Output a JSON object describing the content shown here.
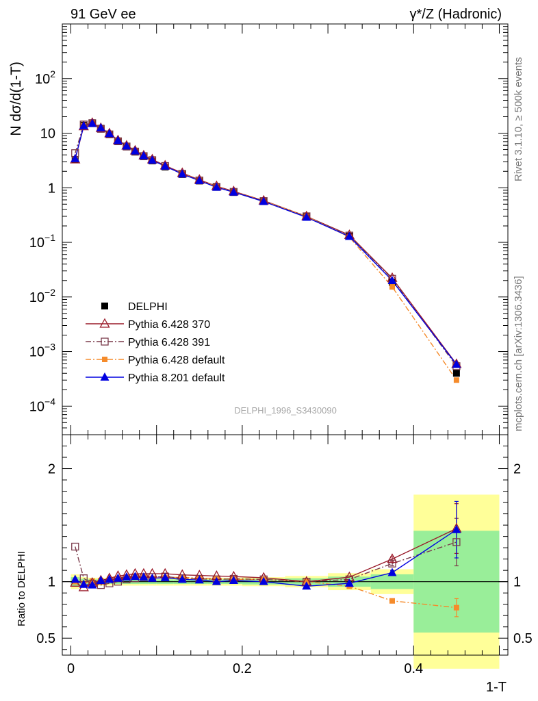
{
  "header": {
    "left": "91 GeV ee",
    "right": "γ*/Z (Hadronic)"
  },
  "side_text": {
    "rivet": "Rivet 3.1.10, ≥ 500k events",
    "mcplots": "mcplots.cern.ch [arXiv:1306.3436]"
  },
  "watermark": "DELPHI_1996_S3430090",
  "colors": {
    "delphi": "#000000",
    "p6_370": "#9a1b2a",
    "p6_391": "#7a3a4a",
    "p6_default": "#f58b2b",
    "p8_default": "#0000e0",
    "band_inner": "#99ee99",
    "band_outer": "#ffff99"
  },
  "chart_data": [
    {
      "type": "line",
      "title": "",
      "xlabel": "1-T",
      "ylabel": "N dσ/d(1-T)",
      "yscale": "log",
      "xlim": [
        -0.01,
        0.51
      ],
      "ylim": [
        3e-05,
        1000
      ],
      "yticks": [
        {
          "value": 0.0001,
          "base": "10",
          "exp": "−4"
        },
        {
          "value": 0.001,
          "base": "10",
          "exp": "−3"
        },
        {
          "value": 0.01,
          "base": "10",
          "exp": "−2"
        },
        {
          "value": 0.1,
          "base": "10",
          "exp": "−1"
        },
        {
          "value": 1,
          "base": "1",
          "exp": ""
        },
        {
          "value": 10,
          "base": "10",
          "exp": ""
        },
        {
          "value": 100,
          "base": "10",
          "exp": "2"
        }
      ],
      "x": [
        0.005,
        0.015,
        0.025,
        0.035,
        0.045,
        0.055,
        0.065,
        0.075,
        0.085,
        0.095,
        0.11,
        0.13,
        0.15,
        0.17,
        0.19,
        0.225,
        0.275,
        0.325,
        0.375,
        0.45
      ],
      "legend": [
        {
          "key": "delphi",
          "label": "DELPHI"
        },
        {
          "key": "p6_370",
          "label": "Pythia 6.428 370"
        },
        {
          "key": "p6_391",
          "label": "Pythia 6.428 391"
        },
        {
          "key": "p6_default",
          "label": "Pythia 6.428 default"
        },
        {
          "key": "p8_default",
          "label": "Pythia 8.201 default"
        }
      ],
      "series": [
        {
          "key": "delphi",
          "name": "DELPHI",
          "marker": "square-filled",
          "values": [
            3.3,
            14.0,
            15.5,
            12.3,
            9.6,
            7.1,
            5.6,
            4.5,
            3.7,
            3.1,
            2.4,
            1.75,
            1.33,
            1.02,
            0.82,
            0.56,
            0.3,
            0.13,
            0.0185,
            0.0004
          ]
        },
        {
          "key": "p6_370",
          "name": "Pythia 6.428 370",
          "marker": "triangle-open",
          "dash": "",
          "values": [
            3.3,
            13.3,
            15.4,
            12.4,
            9.9,
            7.4,
            5.9,
            4.8,
            3.9,
            3.3,
            2.55,
            1.86,
            1.4,
            1.07,
            0.86,
            0.58,
            0.3,
            0.136,
            0.0222,
            0.00059
          ]
        },
        {
          "key": "p6_391",
          "name": "Pythia 6.428 391",
          "marker": "square-open",
          "dash": "8,3,2,3",
          "values": [
            4.3,
            14.4,
            15.2,
            12.0,
            9.5,
            7.1,
            5.7,
            4.6,
            3.8,
            3.2,
            2.5,
            1.8,
            1.36,
            1.04,
            0.84,
            0.57,
            0.3,
            0.133,
            0.0215,
            0.00054
          ]
        },
        {
          "key": "p6_default",
          "name": "Pythia 6.428 default",
          "marker": "square-filled-small",
          "dash": "8,3,2,3",
          "values": [
            3.3,
            13.8,
            15.6,
            12.5,
            9.8,
            7.3,
            5.8,
            4.7,
            3.85,
            3.2,
            2.48,
            1.82,
            1.37,
            1.05,
            0.84,
            0.57,
            0.3,
            0.125,
            0.0153,
            0.0003
          ]
        },
        {
          "key": "p8_default",
          "name": "Pythia 8.201 default",
          "marker": "triangle-filled",
          "dash": "",
          "values": [
            3.4,
            13.6,
            15.0,
            12.5,
            9.8,
            7.3,
            5.8,
            4.7,
            3.85,
            3.2,
            2.48,
            1.78,
            1.35,
            1.02,
            0.83,
            0.56,
            0.287,
            0.128,
            0.0199,
            0.00058
          ]
        }
      ]
    },
    {
      "type": "line",
      "title": "",
      "xlabel": "1-T",
      "ylabel": "Ratio to DELPHI",
      "xlim": [
        -0.01,
        0.51
      ],
      "ylim": [
        0.35,
        2.3
      ],
      "xticks": [
        {
          "value": 0.0,
          "label": "0"
        },
        {
          "value": 0.2,
          "label": "0.2"
        },
        {
          "value": 0.4,
          "label": "0.4"
        }
      ],
      "yticks": [
        {
          "value": 0.5,
          "label": "0.5"
        },
        {
          "value": 1.0,
          "label": "1"
        },
        {
          "value": 2.0,
          "label": "2"
        }
      ],
      "bands": [
        {
          "x0": 0.0,
          "x1": 0.01,
          "inner": 0.04,
          "outer": 0.065
        },
        {
          "x0": 0.01,
          "x1": 0.02,
          "inner": 0.025,
          "outer": 0.04
        },
        {
          "x0": 0.02,
          "x1": 0.03,
          "inner": 0.02,
          "outer": 0.035
        },
        {
          "x0": 0.03,
          "x1": 0.04,
          "inner": 0.02,
          "outer": 0.035
        },
        {
          "x0": 0.04,
          "x1": 0.05,
          "inner": 0.02,
          "outer": 0.035
        },
        {
          "x0": 0.05,
          "x1": 0.06,
          "inner": 0.02,
          "outer": 0.035
        },
        {
          "x0": 0.06,
          "x1": 0.07,
          "inner": 0.02,
          "outer": 0.035
        },
        {
          "x0": 0.07,
          "x1": 0.08,
          "inner": 0.02,
          "outer": 0.035
        },
        {
          "x0": 0.08,
          "x1": 0.09,
          "inner": 0.02,
          "outer": 0.035
        },
        {
          "x0": 0.09,
          "x1": 0.1,
          "inner": 0.02,
          "outer": 0.035
        },
        {
          "x0": 0.1,
          "x1": 0.12,
          "inner": 0.02,
          "outer": 0.035
        },
        {
          "x0": 0.12,
          "x1": 0.14,
          "inner": 0.02,
          "outer": 0.035
        },
        {
          "x0": 0.14,
          "x1": 0.16,
          "inner": 0.02,
          "outer": 0.035
        },
        {
          "x0": 0.16,
          "x1": 0.18,
          "inner": 0.02,
          "outer": 0.035
        },
        {
          "x0": 0.18,
          "x1": 0.2,
          "inner": 0.02,
          "outer": 0.035
        },
        {
          "x0": 0.2,
          "x1": 0.25,
          "inner": 0.025,
          "outer": 0.04
        },
        {
          "x0": 0.25,
          "x1": 0.3,
          "inner": 0.03,
          "outer": 0.05
        },
        {
          "x0": 0.3,
          "x1": 0.35,
          "inner": 0.045,
          "outer": 0.075
        },
        {
          "x0": 0.35,
          "x1": 0.4,
          "inner": 0.065,
          "outer": 0.11
        },
        {
          "x0": 0.4,
          "x1": 0.5,
          "inner": 0.45,
          "outer": 0.77
        }
      ],
      "series": [
        {
          "key": "p6_370",
          "name": "Pythia 6.428 370",
          "values": [
            0.99,
            0.95,
            0.99,
            1.01,
            1.03,
            1.05,
            1.06,
            1.07,
            1.07,
            1.07,
            1.07,
            1.06,
            1.055,
            1.05,
            1.045,
            1.035,
            1.0,
            1.04,
            1.2,
            1.47
          ],
          "errors": [
            0.004,
            0.003,
            0.003,
            0.003,
            0.003,
            0.003,
            0.003,
            0.003,
            0.003,
            0.003,
            0.003,
            0.003,
            0.003,
            0.003,
            0.003,
            0.004,
            0.005,
            0.008,
            0.02,
            0.22
          ]
        },
        {
          "key": "p6_391",
          "name": "Pythia 6.428 391",
          "values": [
            1.31,
            1.03,
            0.98,
            0.97,
            0.985,
            1.0,
            1.02,
            1.03,
            1.04,
            1.04,
            1.045,
            1.03,
            1.025,
            1.02,
            1.025,
            1.02,
            1.0,
            1.02,
            1.16,
            1.35
          ],
          "errors": [
            0.006,
            0.003,
            0.003,
            0.003,
            0.003,
            0.003,
            0.003,
            0.003,
            0.003,
            0.003,
            0.003,
            0.003,
            0.003,
            0.003,
            0.003,
            0.004,
            0.005,
            0.008,
            0.02,
            0.21
          ]
        },
        {
          "key": "p6_default",
          "name": "Pythia 6.428 default",
          "values": [
            1.0,
            0.985,
            1.005,
            1.01,
            1.02,
            1.03,
            1.04,
            1.045,
            1.04,
            1.03,
            1.035,
            1.04,
            1.03,
            1.03,
            1.02,
            1.02,
            1.0,
            0.96,
            0.83,
            0.77
          ],
          "errors": [
            0.004,
            0.003,
            0.003,
            0.003,
            0.003,
            0.003,
            0.003,
            0.003,
            0.003,
            0.003,
            0.003,
            0.003,
            0.003,
            0.003,
            0.003,
            0.004,
            0.005,
            0.008,
            0.015,
            0.08
          ]
        },
        {
          "key": "p8_default",
          "name": "Pythia 8.201 default",
          "values": [
            1.02,
            0.975,
            0.97,
            1.01,
            1.02,
            1.03,
            1.04,
            1.045,
            1.04,
            1.03,
            1.035,
            1.02,
            1.015,
            1.0,
            1.01,
            1.0,
            0.96,
            0.985,
            1.08,
            1.46
          ],
          "errors": [
            0.004,
            0.003,
            0.003,
            0.003,
            0.003,
            0.003,
            0.003,
            0.003,
            0.003,
            0.003,
            0.003,
            0.003,
            0.003,
            0.003,
            0.003,
            0.004,
            0.005,
            0.008,
            0.02,
            0.25
          ]
        }
      ]
    }
  ]
}
